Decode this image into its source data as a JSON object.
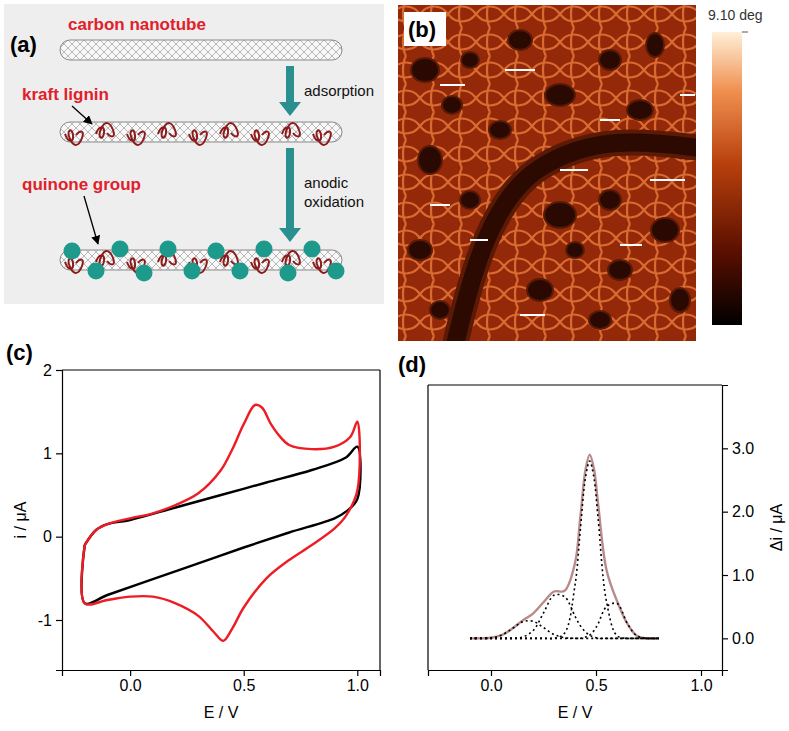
{
  "panel_labels": [
    "(a)",
    "(b)",
    "(c)",
    "(d)"
  ],
  "diagram": {
    "stages": [
      "carbon nanotube",
      "kraft lignin",
      "quinone group"
    ],
    "steps": [
      "adsorption",
      "anodic oxidation"
    ]
  },
  "afm_image": {
    "colorbar": {
      "range": [
        0,
        9.1
      ],
      "ticks": [
        {
          "value": 9.1,
          "label": "9.10 deg"
        }
      ]
    }
  },
  "chart_data": [
    {
      "type": "line",
      "x_label": "E / V",
      "y_label": "i / μA",
      "xlim": [
        -0.3,
        1.1
      ],
      "xticks": [
        {
          "value": 0,
          "label": "0.0"
        },
        0.5,
        {
          "value": 1,
          "label": "1.0"
        }
      ],
      "ylim": [
        -1.6,
        2.0
      ],
      "yticks": [
        -1,
        0,
        1,
        2
      ],
      "series": [
        {
          "color": "#000000",
          "line_style": "solid",
          "x": [
            -0.2,
            -0.15,
            -0.1,
            0.0,
            0.2,
            0.4,
            0.6,
            0.8,
            0.95,
            1.0,
            1.0,
            0.95,
            0.9,
            0.7,
            0.5,
            0.3,
            0.1,
            -0.1,
            -0.2,
            -0.2
          ],
          "values": [
            -0.1,
            0.08,
            0.15,
            0.2,
            0.35,
            0.5,
            0.65,
            0.8,
            0.95,
            1.08,
            0.45,
            0.3,
            0.22,
            0.05,
            -0.13,
            -0.32,
            -0.51,
            -0.7,
            -0.8,
            -0.1
          ]
        },
        {
          "color": "#ee1c25",
          "line_style": "solid",
          "x": [
            -0.2,
            -0.15,
            -0.1,
            0.0,
            0.1,
            0.2,
            0.3,
            0.4,
            0.45,
            0.5,
            0.55,
            0.58,
            0.62,
            0.66,
            0.7,
            0.8,
            0.9,
            0.97,
            1.0,
            1.0,
            0.95,
            0.9,
            0.8,
            0.7,
            0.6,
            0.5,
            0.45,
            0.41,
            0.37,
            0.3,
            0.2,
            0.1,
            0.0,
            -0.1,
            -0.2,
            -0.2
          ],
          "values": [
            -0.1,
            0.08,
            0.15,
            0.22,
            0.28,
            0.38,
            0.52,
            0.8,
            1.05,
            1.35,
            1.58,
            1.55,
            1.35,
            1.2,
            1.1,
            1.05,
            1.08,
            1.2,
            1.38,
            0.55,
            0.25,
            0.1,
            -0.1,
            -0.28,
            -0.5,
            -0.85,
            -1.1,
            -1.25,
            -1.15,
            -0.95,
            -0.8,
            -0.72,
            -0.72,
            -0.76,
            -0.8,
            -0.1
          ]
        }
      ]
    },
    {
      "type": "line",
      "x_label": "E / V",
      "y2_label": "Δi / μA",
      "xlim": [
        -0.3,
        1.1
      ],
      "xticks": [
        {
          "value": 0,
          "label": "0.0"
        },
        0.5,
        {
          "value": 1,
          "label": "1.0"
        }
      ],
      "y2lim": [
        -0.5,
        4.0
      ],
      "y2ticks": [
        {
          "value": 0,
          "label": "0.0"
        },
        {
          "value": 1,
          "label": "1.0"
        },
        {
          "value": 2,
          "label": "2.0"
        },
        {
          "value": 3,
          "label": "3.0"
        }
      ],
      "x": [
        -0.1,
        0.0,
        0.05,
        0.1,
        0.15,
        0.2,
        0.25,
        0.3,
        0.35,
        0.4,
        0.425,
        0.45,
        0.47,
        0.49,
        0.51,
        0.55,
        0.6,
        0.65,
        0.7,
        0.8
      ],
      "series": [
        {
          "color": "#b88a8a",
          "line_style": "solid",
          "axis": "y2",
          "values": [
            0.0,
            0.01,
            0.05,
            0.15,
            0.28,
            0.39,
            0.57,
            0.74,
            0.75,
            1.19,
            1.9,
            2.66,
            2.9,
            2.68,
            2.12,
            1.08,
            0.59,
            0.23,
            0.03,
            0.0
          ]
        },
        {
          "color": "#000000",
          "line_style": "dotted",
          "axis": "y2",
          "values": [
            0.0,
            0.01,
            0.05,
            0.15,
            0.26,
            0.27,
            0.17,
            0.06,
            0.01,
            0.0,
            0.0,
            0.0,
            0.0,
            0.0,
            0.0,
            0.0,
            0.0,
            0.0,
            0.0,
            0.0
          ]
        },
        {
          "color": "#000000",
          "line_style": "dotted",
          "axis": "y2",
          "values": [
            0.0,
            0.0,
            0.0,
            0.0,
            0.02,
            0.12,
            0.4,
            0.68,
            0.66,
            0.35,
            0.2,
            0.1,
            0.05,
            0.02,
            0.0,
            0.0,
            0.0,
            0.0,
            0.0,
            0.0
          ]
        },
        {
          "color": "#000000",
          "line_style": "dotted",
          "axis": "y2",
          "values": [
            0.0,
            0.0,
            0.0,
            0.0,
            0.0,
            0.0,
            0.0,
            0.0,
            0.08,
            0.84,
            1.7,
            2.54,
            2.8,
            2.54,
            1.89,
            0.58,
            0.04,
            0.0,
            0.0,
            0.0
          ]
        },
        {
          "color": "#000000",
          "line_style": "dotted",
          "axis": "y2",
          "values": [
            0.0,
            0.0,
            0.0,
            0.0,
            0.0,
            0.0,
            0.0,
            0.0,
            0.0,
            0.0,
            0.0,
            0.02,
            0.05,
            0.12,
            0.23,
            0.5,
            0.55,
            0.23,
            0.03,
            0.0
          ]
        }
      ]
    }
  ]
}
